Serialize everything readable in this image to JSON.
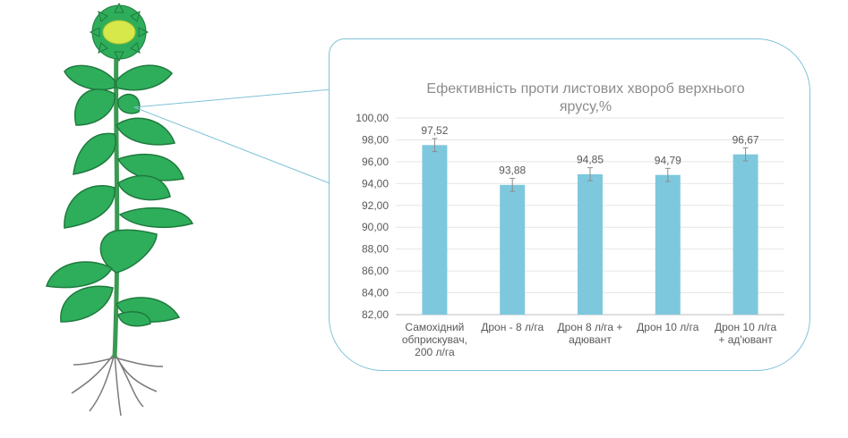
{
  "chart_data": {
    "type": "bar",
    "title_lines": [
      "Ефективність проти листових хвороб верхнього",
      "ярусу,%"
    ],
    "categories": [
      [
        "Самохідний",
        "обприскувач,",
        "200 л/га"
      ],
      [
        "Дрон - 8 л/га"
      ],
      [
        "Дрон 8 л/га +",
        "адювант"
      ],
      [
        "Дрон 10 л/га"
      ],
      [
        "Дрон 10 л/га",
        "+ ад'ювант"
      ]
    ],
    "values": [
      97.52,
      93.88,
      94.85,
      94.79,
      96.67
    ],
    "value_labels": [
      "97,52",
      "93,88",
      "94,85",
      "94,79",
      "96,67"
    ],
    "error_bars": [
      0.6,
      0.6,
      0.6,
      0.6,
      0.6
    ],
    "ylim": [
      82,
      100
    ],
    "yticks": [
      "100,00",
      "98,00",
      "96,00",
      "94,00",
      "92,00",
      "90,00",
      "88,00",
      "86,00",
      "84,00",
      "82,00"
    ],
    "ytick_values": [
      100,
      98,
      96,
      94,
      92,
      90,
      88,
      86,
      84,
      82
    ],
    "grid": true,
    "bar_color": "#7ec8dd",
    "error_color": "#8c8c8c"
  },
  "colors": {
    "leaf": "#2eae5b",
    "leaf_dark": "#1f7a3e",
    "stem": "#3a9a52",
    "flower_center": "#d6e84a",
    "root": "#7a7a7a",
    "callout": "#7fc3d8"
  }
}
